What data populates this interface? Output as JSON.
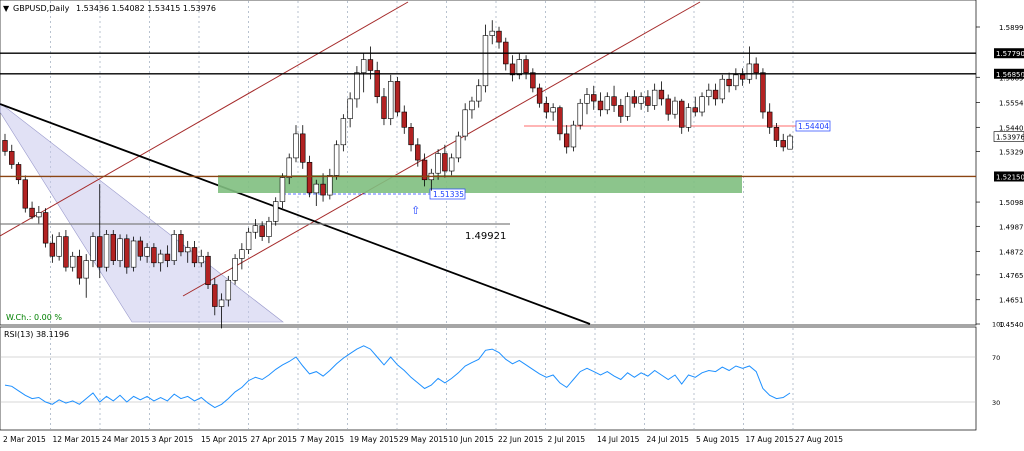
{
  "header": {
    "symbol": "GBPUSD,Daily",
    "ohlc": "1.53436 1.54082 1.53415 1.53976"
  },
  "indicator_label": "RSI(13) 38.1196",
  "wch_label": "W.Ch.: 0.00 %",
  "annotations": {
    "mid_level": "1.49921",
    "support_box": "1.51335",
    "resistance_tag": "1.54404"
  },
  "colors": {
    "bull": "#ffffff",
    "bear": "#b22222",
    "support_zone": "#7fbf7f",
    "channel": "#a52a2a",
    "rsi": "#1e90ff",
    "wedge": "#c8c8ec"
  },
  "chart_data": {
    "type": "candlestick",
    "price_axis": {
      "min": 1.445,
      "max": 1.595,
      "ticks": [
        "1.58990",
        "1.56690",
        "1.55540",
        "1.54400",
        "1.53290",
        "1.50980",
        "1.49870",
        "1.48720",
        "1.47650",
        "1.46510",
        "1.45400"
      ]
    },
    "date_labels": [
      "2 Mar 2015",
      "12 Mar 2015",
      "24 Mar 2015",
      "3 Apr 2015",
      "15 Apr 2015",
      "27 Apr 2015",
      "7 May 2015",
      "19 May 2015",
      "29 May 2015",
      "10 Jun 2015",
      "22 Jun 2015",
      "2 Jul 2015",
      "14 Jul 2015",
      "24 Jul 2015",
      "5 Aug 2015",
      "17 Aug 2015",
      "27 Aug 2015"
    ],
    "horizontal_levels": [
      {
        "label": "1.57790",
        "value": 1.5779,
        "color": "#000000"
      },
      {
        "label": "1.56850",
        "value": 1.5685,
        "color": "#000000"
      },
      {
        "label": "1.52150",
        "value": 1.5215,
        "color": "#8b4513"
      }
    ],
    "current_price": "1.53976",
    "candles": [
      [
        1.538,
        1.541,
        1.531,
        1.533
      ],
      [
        1.533,
        1.536,
        1.525,
        1.527
      ],
      [
        1.527,
        1.528,
        1.518,
        1.52
      ],
      [
        1.52,
        1.522,
        1.505,
        1.507
      ],
      [
        1.507,
        1.51,
        1.502,
        1.503
      ],
      [
        1.503,
        1.508,
        1.5,
        1.505
      ],
      [
        1.505,
        1.507,
        1.489,
        1.491
      ],
      [
        1.491,
        1.495,
        1.482,
        1.485
      ],
      [
        1.485,
        1.496,
        1.483,
        1.494
      ],
      [
        1.494,
        1.497,
        1.478,
        1.48
      ],
      [
        1.48,
        1.487,
        1.478,
        1.485
      ],
      [
        1.485,
        1.488,
        1.472,
        1.475
      ],
      [
        1.475,
        1.486,
        1.466,
        1.483
      ],
      [
        1.483,
        1.496,
        1.48,
        1.494
      ],
      [
        1.494,
        1.518,
        1.475,
        1.48
      ],
      [
        1.48,
        1.497,
        1.478,
        1.495
      ],
      [
        1.495,
        1.497,
        1.481,
        1.483
      ],
      [
        1.483,
        1.495,
        1.48,
        1.493
      ],
      [
        1.493,
        1.495,
        1.477,
        1.48
      ],
      [
        1.48,
        1.494,
        1.478,
        1.492
      ],
      [
        1.492,
        1.494,
        1.483,
        1.485
      ],
      [
        1.485,
        1.491,
        1.482,
        1.489
      ],
      [
        1.489,
        1.491,
        1.48,
        1.482
      ],
      [
        1.482,
        1.488,
        1.478,
        1.486
      ],
      [
        1.486,
        1.49,
        1.48,
        1.483
      ],
      [
        1.483,
        1.497,
        1.481,
        1.495
      ],
      [
        1.495,
        1.497,
        1.485,
        1.487
      ],
      [
        1.487,
        1.492,
        1.482,
        1.489
      ],
      [
        1.489,
        1.492,
        1.48,
        1.482
      ],
      [
        1.482,
        1.488,
        1.48,
        1.485
      ],
      [
        1.485,
        1.487,
        1.47,
        1.472
      ],
      [
        1.472,
        1.475,
        1.458,
        1.462
      ],
      [
        1.462,
        1.468,
        1.452,
        1.465
      ],
      [
        1.465,
        1.476,
        1.462,
        1.474
      ],
      [
        1.474,
        1.486,
        1.472,
        1.484
      ],
      [
        1.484,
        1.491,
        1.479,
        1.488
      ],
      [
        1.488,
        1.498,
        1.486,
        1.496
      ],
      [
        1.496,
        1.502,
        1.493,
        1.499
      ],
      [
        1.499,
        1.501,
        1.492,
        1.494
      ],
      [
        1.494,
        1.503,
        1.491,
        1.501
      ],
      [
        1.501,
        1.512,
        1.499,
        1.51
      ],
      [
        1.51,
        1.523,
        1.507,
        1.521
      ],
      [
        1.521,
        1.532,
        1.518,
        1.53
      ],
      [
        1.53,
        1.545,
        1.528,
        1.541
      ],
      [
        1.541,
        1.545,
        1.525,
        1.528
      ],
      [
        1.528,
        1.531,
        1.512,
        1.514
      ],
      [
        1.514,
        1.52,
        1.508,
        1.518
      ],
      [
        1.518,
        1.523,
        1.51,
        1.513
      ],
      [
        1.513,
        1.525,
        1.511,
        1.522
      ],
      [
        1.522,
        1.538,
        1.52,
        1.536
      ],
      [
        1.536,
        1.55,
        1.533,
        1.548
      ],
      [
        1.548,
        1.56,
        1.544,
        1.557
      ],
      [
        1.557,
        1.572,
        1.553,
        1.569
      ],
      [
        1.569,
        1.578,
        1.56,
        1.575
      ],
      [
        1.575,
        1.581,
        1.566,
        1.57
      ],
      [
        1.57,
        1.574,
        1.555,
        1.558
      ],
      [
        1.558,
        1.562,
        1.545,
        1.548
      ],
      [
        1.548,
        1.568,
        1.545,
        1.565
      ],
      [
        1.565,
        1.567,
        1.549,
        1.551
      ],
      [
        1.551,
        1.554,
        1.541,
        1.544
      ],
      [
        1.544,
        1.546,
        1.533,
        1.536
      ],
      [
        1.536,
        1.539,
        1.526,
        1.529
      ],
      [
        1.529,
        1.532,
        1.517,
        1.52
      ],
      [
        1.52,
        1.525,
        1.515,
        1.523
      ],
      [
        1.523,
        1.534,
        1.52,
        1.532
      ],
      [
        1.532,
        1.536,
        1.521,
        1.524
      ],
      [
        1.524,
        1.532,
        1.522,
        1.53
      ],
      [
        1.53,
        1.542,
        1.528,
        1.54
      ],
      [
        1.54,
        1.555,
        1.538,
        1.552
      ],
      [
        1.552,
        1.558,
        1.548,
        1.556
      ],
      [
        1.556,
        1.566,
        1.553,
        1.563
      ],
      [
        1.563,
        1.591,
        1.56,
        1.586
      ],
      [
        1.586,
        1.593,
        1.582,
        1.588
      ],
      [
        1.588,
        1.59,
        1.58,
        1.583
      ],
      [
        1.583,
        1.585,
        1.57,
        1.573
      ],
      [
        1.573,
        1.577,
        1.565,
        1.568
      ],
      [
        1.568,
        1.578,
        1.566,
        1.575
      ],
      [
        1.575,
        1.577,
        1.566,
        1.569
      ],
      [
        1.569,
        1.571,
        1.56,
        1.562
      ],
      [
        1.562,
        1.564,
        1.553,
        1.555
      ],
      [
        1.555,
        1.558,
        1.548,
        1.551
      ],
      [
        1.551,
        1.555,
        1.547,
        1.553
      ],
      [
        1.553,
        1.554,
        1.538,
        1.541
      ],
      [
        1.541,
        1.545,
        1.532,
        1.535
      ],
      [
        1.535,
        1.547,
        1.533,
        1.545
      ],
      [
        1.545,
        1.557,
        1.543,
        1.555
      ],
      [
        1.555,
        1.562,
        1.55,
        1.559
      ],
      [
        1.559,
        1.563,
        1.552,
        1.556
      ],
      [
        1.556,
        1.56,
        1.549,
        1.552
      ],
      [
        1.552,
        1.56,
        1.55,
        1.558
      ],
      [
        1.558,
        1.563,
        1.551,
        1.554
      ],
      [
        1.554,
        1.557,
        1.546,
        1.549
      ],
      [
        1.549,
        1.56,
        1.547,
        1.558
      ],
      [
        1.558,
        1.561,
        1.553,
        1.555
      ],
      [
        1.555,
        1.56,
        1.552,
        1.558
      ],
      [
        1.558,
        1.561,
        1.551,
        1.554
      ],
      [
        1.554,
        1.564,
        1.552,
        1.561
      ],
      [
        1.561,
        1.565,
        1.554,
        1.557
      ],
      [
        1.557,
        1.559,
        1.547,
        1.55
      ],
      [
        1.55,
        1.558,
        1.548,
        1.556
      ],
      [
        1.556,
        1.557,
        1.541,
        1.544
      ],
      [
        1.544,
        1.555,
        1.542,
        1.553
      ],
      [
        1.553,
        1.558,
        1.549,
        1.551
      ],
      [
        1.551,
        1.56,
        1.549,
        1.558
      ],
      [
        1.558,
        1.564,
        1.554,
        1.561
      ],
      [
        1.561,
        1.564,
        1.554,
        1.557
      ],
      [
        1.557,
        1.568,
        1.555,
        1.566
      ],
      [
        1.566,
        1.569,
        1.56,
        1.563
      ],
      [
        1.563,
        1.571,
        1.561,
        1.568
      ],
      [
        1.568,
        1.571,
        1.563,
        1.566
      ],
      [
        1.566,
        1.581,
        1.564,
        1.573
      ],
      [
        1.573,
        1.576,
        1.566,
        1.569
      ],
      [
        1.569,
        1.571,
        1.548,
        1.551
      ],
      [
        1.551,
        1.555,
        1.541,
        1.544
      ],
      [
        1.544,
        1.546,
        1.535,
        1.538
      ],
      [
        1.538,
        1.541,
        1.533,
        1.535
      ],
      [
        1.534,
        1.541,
        1.534,
        1.54
      ]
    ],
    "rsi": {
      "name": "RSI(13)",
      "value": "38.1196",
      "ylim": [
        0,
        100
      ],
      "levels": [
        70,
        30
      ],
      "axis_labels": [
        "100",
        "70",
        "30"
      ],
      "values": [
        45,
        44,
        40,
        36,
        33,
        34,
        30,
        28,
        32,
        29,
        31,
        28,
        33,
        38,
        30,
        35,
        31,
        36,
        30,
        35,
        32,
        35,
        31,
        34,
        31,
        37,
        33,
        35,
        31,
        34,
        29,
        25,
        28,
        33,
        39,
        43,
        49,
        52,
        50,
        54,
        59,
        63,
        66,
        70,
        62,
        55,
        57,
        53,
        58,
        64,
        69,
        73,
        77,
        80,
        77,
        70,
        63,
        70,
        63,
        58,
        52,
        47,
        42,
        45,
        51,
        47,
        51,
        56,
        62,
        65,
        68,
        76,
        77,
        74,
        68,
        64,
        67,
        63,
        59,
        55,
        52,
        54,
        47,
        43,
        50,
        57,
        60,
        57,
        54,
        57,
        53,
        50,
        56,
        52,
        56,
        53,
        58,
        54,
        50,
        54,
        46,
        54,
        52,
        56,
        58,
        57,
        61,
        58,
        62,
        60,
        62,
        57,
        42,
        36,
        33,
        34,
        38
      ]
    }
  }
}
